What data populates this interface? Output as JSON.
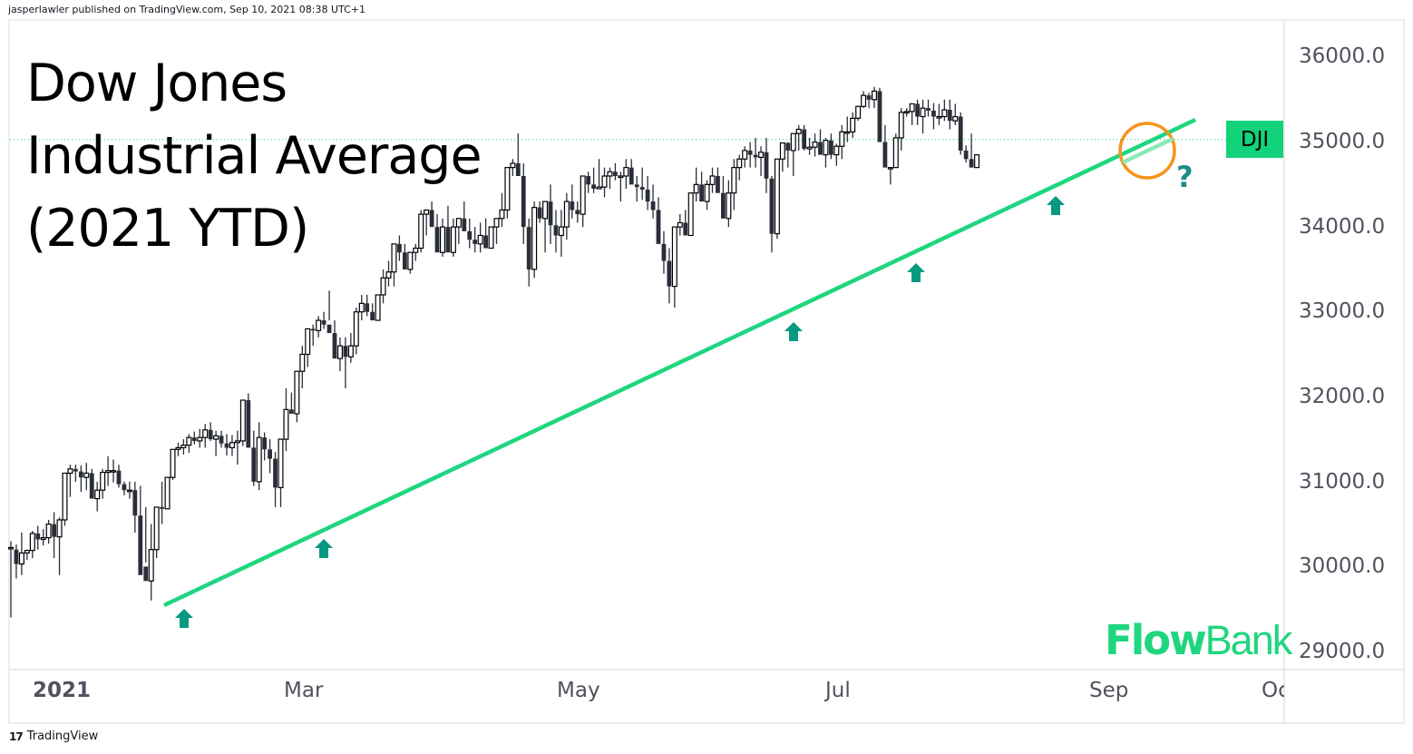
{
  "header": {
    "publisher_line": "jasperlawler published on TradingView.com, Sep 10, 2021 08:38 UTC+1"
  },
  "title": {
    "line1": "Dow Jones",
    "line2": "Industrial Average",
    "line3": "(2021 YTD)"
  },
  "symbol_badge": {
    "label": "DJI",
    "color": "#12d27a"
  },
  "annotation": {
    "question_mark": "?",
    "circle_color": "#f7931a",
    "arrow_color": "#089981"
  },
  "branding": {
    "flow": "Flow",
    "bank": "Bank",
    "color": "#1ed67e"
  },
  "footer": {
    "tradingview_mark": "17",
    "tradingview_label": "TradingView"
  },
  "colors": {
    "trendline": "#1ed67e",
    "bear_candle": "#2a2e39",
    "bull_candle_border": "#000000",
    "price_line": "#1ed67e",
    "axis_text": "#50535e",
    "grid_border": "#ebedf1"
  },
  "chart_data": {
    "type": "candlestick",
    "title": "Dow Jones Industrial Average (2021 YTD)",
    "symbol": "DJI",
    "xlabel": "",
    "ylabel": "",
    "ylim": [
      29000,
      36200
    ],
    "y_ticks": [
      "36000.0",
      "35000.0",
      "34000.0",
      "33000.0",
      "32000.0",
      "31000.0",
      "30000.0",
      "29000.0"
    ],
    "x_ticks": [
      {
        "label": "2021",
        "bold": true
      },
      {
        "label": "Mar",
        "bold": false
      },
      {
        "label": "May",
        "bold": false
      },
      {
        "label": "Jul",
        "bold": false
      },
      {
        "label": "Sep",
        "bold": false
      },
      {
        "label": "Oc",
        "bold": false
      }
    ],
    "current_price_line": 35030,
    "trendline": {
      "start": {
        "date": "2021-01-29",
        "price": 29560
      },
      "end": {
        "date": "2021-09-20",
        "price": 35240
      }
    },
    "support_touches": [
      "2021-01-29",
      "2021-03-04",
      "2021-06-21",
      "2021-07-19",
      "2021-08-19"
    ],
    "ohlc": [
      [
        30224,
        30300,
        29400,
        30224
      ],
      [
        30200,
        30260,
        29860,
        30030
      ],
      [
        30030,
        30400,
        29900,
        30160
      ],
      [
        30160,
        30200,
        30080,
        30190
      ],
      [
        30190,
        30420,
        30100,
        30390
      ],
      [
        30390,
        30480,
        30200,
        30320
      ],
      [
        30320,
        30440,
        30250,
        30340
      ],
      [
        30340,
        30550,
        30270,
        30500
      ],
      [
        30500,
        30640,
        30100,
        30350
      ],
      [
        30350,
        30580,
        29900,
        30550
      ],
      [
        30550,
        30900,
        30480,
        31100
      ],
      [
        31100,
        31200,
        30820,
        31150
      ],
      [
        31150,
        31200,
        31000,
        31120
      ],
      [
        31120,
        31190,
        30880,
        31050
      ],
      [
        31050,
        31220,
        30900,
        31100
      ],
      [
        31100,
        31150,
        30860,
        30800
      ],
      [
        30800,
        31000,
        30650,
        30900
      ],
      [
        30900,
        31150,
        30800,
        31110
      ],
      [
        31110,
        31300,
        30950,
        31130
      ],
      [
        31130,
        31260,
        30990,
        31130
      ],
      [
        31130,
        31200,
        30930,
        30970
      ],
      [
        30970,
        31000,
        30840,
        30900
      ],
      [
        30900,
        31000,
        30800,
        30900
      ],
      [
        30900,
        31000,
        30400,
        30600
      ],
      [
        30600,
        30950,
        30000,
        29900
      ],
      [
        30000,
        30700,
        30050,
        29830
      ],
      [
        29830,
        30500,
        29600,
        30200
      ],
      [
        30200,
        30600,
        30100,
        30700
      ],
      [
        30700,
        31000,
        30500,
        30680
      ],
      [
        30680,
        31000,
        30700,
        31050
      ],
      [
        31050,
        31200,
        31020,
        31380
      ],
      [
        31380,
        31460,
        31300,
        31400
      ],
      [
        31400,
        31500,
        31320,
        31430
      ],
      [
        31430,
        31560,
        31340,
        31520
      ],
      [
        31520,
        31590,
        31440,
        31480
      ],
      [
        31480,
        31620,
        31400,
        31520
      ],
      [
        31520,
        31680,
        31400,
        31610
      ],
      [
        31610,
        31700,
        31480,
        31500
      ],
      [
        31500,
        31600,
        31300,
        31540
      ],
      [
        31540,
        31600,
        31400,
        31450
      ],
      [
        31450,
        31560,
        31310,
        31400
      ],
      [
        31400,
        31550,
        31300,
        31460
      ],
      [
        31460,
        31600,
        31200,
        31480
      ],
      [
        31480,
        31960,
        31420,
        31960
      ],
      [
        31960,
        32040,
        31500,
        31400
      ],
      [
        31400,
        31600,
        30950,
        31000
      ],
      [
        31000,
        31700,
        30900,
        31520
      ],
      [
        31520,
        31580,
        31250,
        31380
      ],
      [
        31380,
        31500,
        31100,
        31270
      ],
      [
        31270,
        31350,
        30700,
        30930
      ],
      [
        30930,
        31500,
        30700,
        31500
      ],
      [
        31500,
        32100,
        31360,
        31850
      ],
      [
        31850,
        32050,
        31800,
        31800
      ],
      [
        31800,
        32300,
        31700,
        32300
      ],
      [
        32300,
        32600,
        32100,
        32500
      ],
      [
        32500,
        32750,
        32350,
        32800
      ],
      [
        32800,
        32850,
        32600,
        32780
      ],
      [
        32780,
        32950,
        32700,
        32900
      ],
      [
        32900,
        33000,
        32800,
        32850
      ],
      [
        32850,
        33250,
        32900,
        32750
      ],
      [
        32750,
        32900,
        32500,
        32450
      ],
      [
        32450,
        32700,
        32300,
        32600
      ],
      [
        32600,
        32700,
        32100,
        32470
      ],
      [
        32470,
        32750,
        32400,
        32600
      ],
      [
        32600,
        33050,
        32500,
        33000
      ],
      [
        33000,
        33200,
        32900,
        33100
      ],
      [
        33100,
        33200,
        32950,
        33000
      ],
      [
        33000,
        33100,
        32900,
        32900
      ],
      [
        32900,
        33200,
        32900,
        33200
      ],
      [
        33200,
        33500,
        33100,
        33400
      ],
      [
        33400,
        33600,
        33300,
        33470
      ],
      [
        33470,
        33800,
        33300,
        33800
      ],
      [
        33800,
        33900,
        33600,
        33700
      ],
      [
        33700,
        33800,
        33500,
        33500
      ],
      [
        33500,
        33700,
        33450,
        33700
      ],
      [
        33700,
        33800,
        33600,
        33750
      ],
      [
        33750,
        34200,
        33700,
        34150
      ],
      [
        34150,
        34200,
        33900,
        34200
      ],
      [
        34200,
        34300,
        34100,
        34000
      ],
      [
        34000,
        34150,
        33800,
        33700
      ],
      [
        33700,
        34100,
        33650,
        34000
      ],
      [
        34000,
        34250,
        33700,
        33700
      ],
      [
        33700,
        34100,
        33650,
        34000
      ],
      [
        34000,
        34100,
        33800,
        34100
      ],
      [
        34100,
        34300,
        33950,
        33950
      ],
      [
        33950,
        34100,
        33750,
        33850
      ],
      [
        33850,
        34000,
        33700,
        33800
      ],
      [
        33800,
        34050,
        33700,
        33900
      ],
      [
        33900,
        34100,
        33750,
        33750
      ],
      [
        33750,
        34000,
        33750,
        34000
      ],
      [
        34000,
        34100,
        33800,
        34100
      ],
      [
        34100,
        34400,
        34000,
        34200
      ],
      [
        34200,
        34400,
        34100,
        34700
      ],
      [
        34700,
        34800,
        34600,
        34750
      ],
      [
        34750,
        35100,
        34700,
        34600
      ],
      [
        34600,
        34750,
        33800,
        34000
      ],
      [
        34000,
        34100,
        33300,
        33500
      ],
      [
        33500,
        34300,
        33400,
        34230
      ],
      [
        34230,
        34300,
        34050,
        34100
      ],
      [
        34100,
        34200,
        33700,
        34300
      ],
      [
        34300,
        34500,
        33800,
        34020
      ],
      [
        34020,
        34200,
        33700,
        33900
      ],
      [
        33900,
        34200,
        33650,
        34000
      ],
      [
        34000,
        34400,
        33850,
        34300
      ],
      [
        34300,
        34500,
        34100,
        34200
      ],
      [
        34200,
        34300,
        34050,
        34150
      ],
      [
        34150,
        34600,
        34000,
        34600
      ],
      [
        34600,
        34650,
        34400,
        34500
      ],
      [
        34500,
        34700,
        34400,
        34450
      ],
      [
        34450,
        34800,
        34450,
        34470
      ],
      [
        34470,
        34700,
        34350,
        34600
      ],
      [
        34600,
        34700,
        34450,
        34650
      ],
      [
        34650,
        34750,
        34550,
        34600
      ],
      [
        34600,
        34650,
        34300,
        34600
      ],
      [
        34600,
        34800,
        34450,
        34700
      ],
      [
        34700,
        34800,
        34550,
        34500
      ],
      [
        34500,
        34600,
        34300,
        34470
      ],
      [
        34470,
        34700,
        34320,
        34440
      ],
      [
        34440,
        34600,
        34200,
        34300
      ],
      [
        34300,
        34500,
        34100,
        34200
      ],
      [
        34200,
        34350,
        33900,
        33800
      ],
      [
        33800,
        33950,
        33450,
        33600
      ],
      [
        33600,
        33750,
        33100,
        33300
      ],
      [
        33300,
        34000,
        33050,
        34000
      ],
      [
        34000,
        34150,
        33900,
        34050
      ],
      [
        34050,
        34200,
        33900,
        33900
      ],
      [
        33900,
        34400,
        33900,
        34400
      ],
      [
        34400,
        34700,
        34300,
        34500
      ],
      [
        34500,
        34650,
        34350,
        34300
      ],
      [
        34300,
        34550,
        34200,
        34500
      ],
      [
        34500,
        34700,
        34400,
        34600
      ],
      [
        34600,
        34700,
        34450,
        34400
      ],
      [
        34400,
        34600,
        34100,
        34100
      ],
      [
        34100,
        34550,
        34000,
        34400
      ],
      [
        34400,
        34800,
        34200,
        34700
      ],
      [
        34700,
        34850,
        34550,
        34800
      ],
      [
        34800,
        34950,
        34700,
        34900
      ],
      [
        34900,
        35000,
        34700,
        34850
      ],
      [
        34850,
        35050,
        34700,
        34820
      ],
      [
        34820,
        34950,
        34600,
        34880
      ],
      [
        34880,
        35050,
        34400,
        34570
      ],
      [
        34570,
        34600,
        33700,
        33920
      ],
      [
        33920,
        34800,
        33860,
        34800
      ],
      [
        34800,
        34850,
        34650,
        34990
      ],
      [
        34990,
        35000,
        34700,
        34900
      ],
      [
        34900,
        35100,
        34600,
        35100
      ],
      [
        35100,
        35200,
        34900,
        35150
      ],
      [
        35150,
        35200,
        34900,
        34920
      ],
      [
        34920,
        35050,
        34850,
        34940
      ],
      [
        34940,
        35100,
        34830,
        35000
      ],
      [
        35000,
        35150,
        34850,
        34850
      ],
      [
        34850,
        35050,
        34700,
        35020
      ],
      [
        35020,
        35100,
        34800,
        34850
      ],
      [
        34850,
        34980,
        34720,
        34950
      ],
      [
        34950,
        35200,
        34800,
        35120
      ],
      [
        35120,
        35300,
        35000,
        35120
      ],
      [
        35120,
        35350,
        35050,
        35280
      ],
      [
        35280,
        35400,
        35250,
        35420
      ],
      [
        35420,
        35600,
        35400,
        35550
      ],
      [
        35550,
        35580,
        35400,
        35500
      ],
      [
        35500,
        35650,
        35400,
        35600
      ],
      [
        35600,
        35640,
        35100,
        35000
      ],
      [
        35000,
        35200,
        34750,
        34700
      ],
      [
        34700,
        34700,
        34500,
        34700
      ],
      [
        34700,
        35100,
        34700,
        35050
      ],
      [
        35050,
        35400,
        34900,
        35350
      ],
      [
        35350,
        35400,
        35300,
        35360
      ],
      [
        35360,
        35450,
        35200,
        35450
      ],
      [
        35450,
        35500,
        35200,
        35300
      ],
      [
        35300,
        35500,
        35100,
        35400
      ],
      [
        35400,
        35500,
        35300,
        35370
      ],
      [
        35370,
        35460,
        35150,
        35300
      ],
      [
        35300,
        35450,
        35200,
        35300
      ],
      [
        35300,
        35500,
        35250,
        35380
      ],
      [
        35380,
        35500,
        35150,
        35250
      ],
      [
        35250,
        35450,
        35200,
        35300
      ],
      [
        35300,
        35350,
        34850,
        34900
      ],
      [
        34900,
        34960,
        34760,
        34800
      ],
      [
        34800,
        35100,
        34700,
        34700
      ],
      [
        34700,
        34850,
        34750,
        34850
      ]
    ]
  }
}
